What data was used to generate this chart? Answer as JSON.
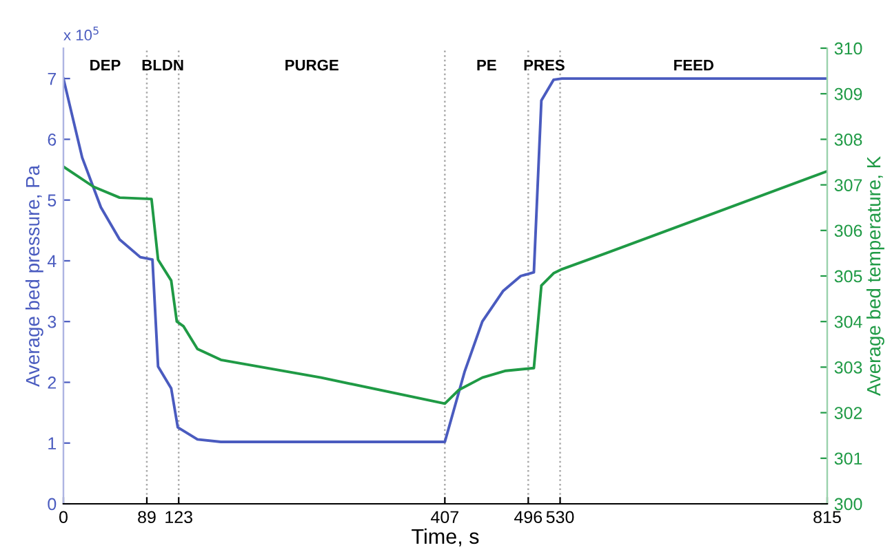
{
  "chart_data": {
    "type": "line",
    "xlabel": "Time, s",
    "ylabel": "Average bed pressure, Pa",
    "y2label": "Average bed temperature, K",
    "xlim": [
      0,
      815
    ],
    "xticks": [
      0,
      89,
      123,
      407,
      496,
      530,
      815
    ],
    "ylim": [
      0,
      7.5
    ],
    "yticks": [
      0,
      1,
      2,
      3,
      4,
      5,
      6,
      7
    ],
    "y2lim": [
      300,
      310
    ],
    "y2ticks": [
      300,
      301,
      302,
      303,
      304,
      305,
      306,
      307,
      308,
      309,
      310
    ],
    "grid": false,
    "legend": false,
    "series": [
      {
        "color": "#4a5bbf",
        "x": [
          0,
          20,
          40,
          60,
          82,
          95,
          101,
          115,
          122,
          143,
          168,
          407,
          428,
          447,
          469,
          488,
          502,
          510,
          523,
          532,
          815
        ],
        "values": [
          7.0,
          5.7,
          4.88,
          4.35,
          4.06,
          4.02,
          2.26,
          1.9,
          1.26,
          1.06,
          1.02,
          1.02,
          2.17,
          3.0,
          3.5,
          3.75,
          3.81,
          6.64,
          6.98,
          7.0,
          7.0
        ]
      },
      {
        "color": "#1f9a45",
        "axis": "y2",
        "x": [
          0,
          32,
          60,
          94,
          101,
          115,
          121,
          128,
          143,
          168,
          275,
          407,
          422,
          447,
          472,
          502,
          510,
          523,
          532,
          579,
          815
        ],
        "values": [
          307.4,
          306.96,
          306.72,
          306.69,
          305.36,
          304.9,
          304.0,
          303.9,
          303.4,
          303.16,
          302.77,
          302.2,
          302.5,
          302.77,
          302.92,
          302.98,
          304.79,
          305.06,
          305.15,
          305.5,
          307.3
        ]
      }
    ],
    "ref_lines": [
      {
        "axis": "x",
        "value": 89,
        "line_style": "dotted",
        "color": "#aaaaaa"
      },
      {
        "axis": "x",
        "value": 123,
        "line_style": "dotted",
        "color": "#aaaaaa"
      },
      {
        "axis": "x",
        "value": 407,
        "line_style": "dotted",
        "color": "#aaaaaa"
      },
      {
        "axis": "x",
        "value": 496,
        "line_style": "dotted",
        "color": "#aaaaaa"
      },
      {
        "axis": "x",
        "value": 530,
        "line_style": "dotted",
        "color": "#aaaaaa"
      }
    ],
    "annotations": [
      "x 10$^{5}$",
      "DEP",
      "BLDN",
      "PURGE",
      "PE",
      "PRES",
      "FEED"
    ]
  }
}
